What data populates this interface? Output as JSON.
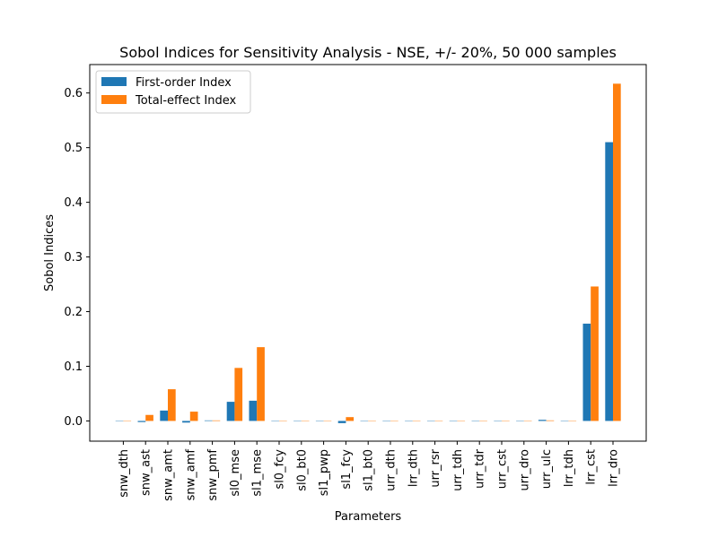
{
  "chart_data": {
    "type": "bar",
    "title": "Sobol Indices for Sensitivity Analysis - NSE, +/- 20%, 50 000 samples",
    "xlabel": "Parameters",
    "ylabel": "Sobol Indices",
    "ylim": [
      -0.037,
      0.652
    ],
    "yticks": [
      "0.0",
      "0.1",
      "0.2",
      "0.3",
      "0.4",
      "0.5",
      "0.6"
    ],
    "ytick_values": [
      0.0,
      0.1,
      0.2,
      0.3,
      0.4,
      0.5,
      0.6
    ],
    "grid": false,
    "legend_position": "top-left",
    "categories": [
      "snw_dth",
      "snw_ast",
      "snw_amt",
      "snw_amf",
      "snw_pmf",
      "sl0_mse",
      "sl1_mse",
      "sl0_fcy",
      "sl0_bt0",
      "sl1_pwp",
      "sl1_fcy",
      "sl1_bt0",
      "urr_dth",
      "lrr_dth",
      "urr_rsr",
      "urr_tdh",
      "urr_tdr",
      "urr_cst",
      "urr_dro",
      "urr_ulc",
      "lrr_tdh",
      "lrr_cst",
      "lrr_dro"
    ],
    "series": [
      {
        "name": "First-order Index",
        "color": "#1f77b4",
        "values": [
          0.0,
          -0.002,
          0.019,
          -0.003,
          0.001,
          0.035,
          0.037,
          0.0,
          0.0,
          0.0,
          -0.004,
          0.0,
          0.0,
          0.0,
          0.0,
          0.0,
          0.0,
          0.0,
          0.0,
          0.002,
          0.0,
          0.178,
          0.51
        ]
      },
      {
        "name": "Total-effect Index",
        "color": "#ff7f0e",
        "values": [
          0.0,
          0.011,
          0.058,
          0.017,
          0.001,
          0.097,
          0.135,
          0.0,
          0.0,
          0.0,
          0.007,
          0.0,
          0.0,
          0.0,
          0.0,
          0.0,
          0.0,
          0.0,
          0.0,
          0.001,
          0.0,
          0.246,
          0.617
        ]
      }
    ]
  }
}
